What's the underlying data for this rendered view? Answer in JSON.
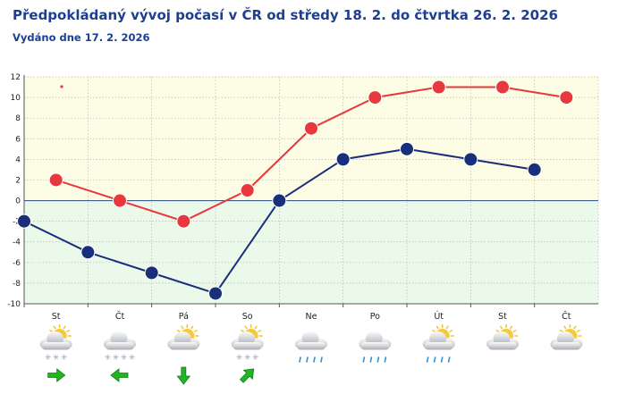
{
  "page": {
    "title": "Předpokládaný vývoj počasí v ČR od středy 18. 2. do čtvrtka 26. 2. 2026",
    "subtitle": "Vydáno dne 17. 2. 2026"
  },
  "chart_data": {
    "type": "line",
    "title": "Předpokládaný vývoj počasí v ČR od středy 18. 2. do čtvrtka 26. 2. 2026",
    "xlabel": "",
    "ylabel": "",
    "ylim": [
      -10,
      12
    ],
    "yticks": [
      -10,
      -8,
      -6,
      -4,
      -2,
      0,
      2,
      4,
      6,
      8,
      10,
      12
    ],
    "grid": true,
    "days": [
      "St",
      "Čt",
      "Pá",
      "So",
      "Ne",
      "Po",
      "Út",
      "St",
      "Čt"
    ],
    "series": [
      {
        "color": "#e8383d",
        "points": [
          {
            "x": 0.5,
            "y": 2
          },
          {
            "x": 1.5,
            "y": 0
          },
          {
            "x": 2.5,
            "y": -2
          },
          {
            "x": 3.5,
            "y": 1
          },
          {
            "x": 4.5,
            "y": 7
          },
          {
            "x": 5.5,
            "y": 10
          },
          {
            "x": 6.5,
            "y": 11
          },
          {
            "x": 7.5,
            "y": 11
          },
          {
            "x": 8.5,
            "y": 10
          }
        ]
      },
      {
        "color": "#1a2f7a",
        "points": [
          {
            "x": 0,
            "y": -2
          },
          {
            "x": 1,
            "y": -5
          },
          {
            "x": 2,
            "y": -7
          },
          {
            "x": 3,
            "y": -9
          },
          {
            "x": 4,
            "y": 0
          },
          {
            "x": 5,
            "y": 4
          },
          {
            "x": 6,
            "y": 5
          },
          {
            "x": 7,
            "y": 4
          },
          {
            "x": 8,
            "y": 3
          }
        ]
      }
    ],
    "weather_icons": [
      "sun-cloud-snow-icon",
      "cloud-snow-icon",
      "sun-cloud-icon",
      "sun-cloud-snow-icon",
      "cloud-rain-icon",
      "cloud-rain-icon",
      "sun-cloud-rain-icon",
      "sun-cloud-icon",
      "sun-cloud-icon"
    ],
    "wind": [
      {
        "day": 0,
        "direction": "east"
      },
      {
        "day": 1,
        "direction": "west"
      },
      {
        "day": 2,
        "direction": "south"
      },
      {
        "day": 3,
        "direction": "north-east"
      }
    ],
    "colors": {
      "warm_bg": "#fdfde5",
      "cold_bg": "#ebf9eb",
      "zero_line": "#3c5d8a",
      "wind_arrow": "#22b522"
    }
  }
}
